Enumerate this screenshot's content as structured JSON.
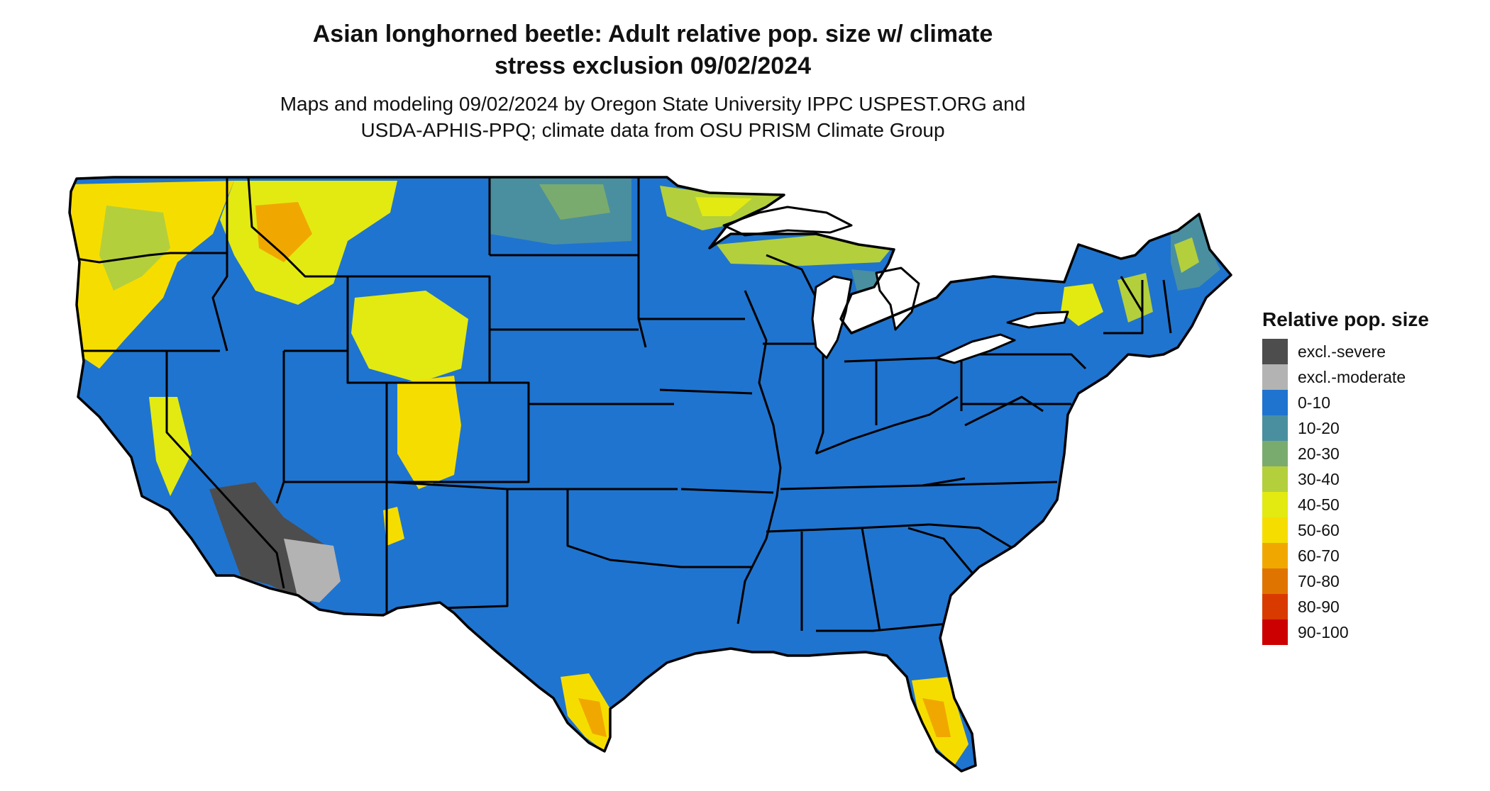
{
  "title": {
    "line1": "Asian longhorned beetle: Adult relative pop. size w/ climate",
    "line2": "stress exclusion 09/02/2024"
  },
  "subtitle": {
    "line1": "Maps and modeling 09/02/2024 by Oregon State University IPPC USPEST.ORG and",
    "line2": "USDA-APHIS-PPQ; climate data from OSU PRISM Climate Group"
  },
  "legend": {
    "title": "Relative pop. size",
    "items": [
      {
        "label": "excl.-severe",
        "color": "#4d4d4d"
      },
      {
        "label": "excl.-moderate",
        "color": "#b3b3b3"
      },
      {
        "label": "0-10",
        "color": "#1f74cf"
      },
      {
        "label": "10-20",
        "color": "#4a8fa0"
      },
      {
        "label": "20-30",
        "color": "#7aab6e"
      },
      {
        "label": "30-40",
        "color": "#b3cf3c"
      },
      {
        "label": "40-50",
        "color": "#e2ea12"
      },
      {
        "label": "50-60",
        "color": "#f6dd00"
      },
      {
        "label": "60-70",
        "color": "#f0a800"
      },
      {
        "label": "70-80",
        "color": "#e07400"
      },
      {
        "label": "80-90",
        "color": "#d93a00"
      },
      {
        "label": "90-100",
        "color": "#cc0000"
      }
    ]
  },
  "map": {
    "background_class": "0-10",
    "boundary_color": "#000000"
  }
}
